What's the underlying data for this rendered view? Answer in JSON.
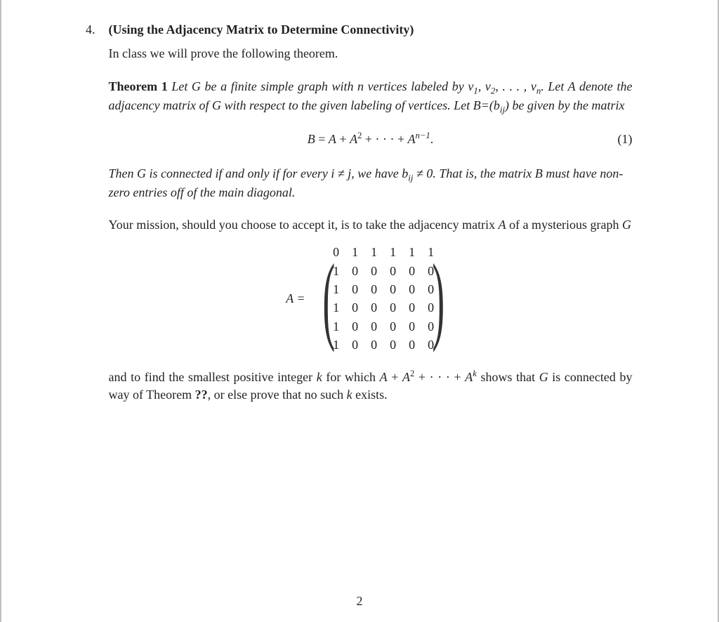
{
  "problem": {
    "number": "4.",
    "title_prefix": "(",
    "title_text": "Using the Adjacency Matrix to Determine Connectivity",
    "title_suffix": ")",
    "intro": "In class we will prove the following theorem."
  },
  "theorem": {
    "label": "Theorem 1",
    "body1_a": "Let G be a finite simple graph with n vertices labeled by v",
    "body1_b": ", v",
    "body1_c": ", . . . , v",
    "body1_d": ". Let A denote the adjacency matrix of G with respect to the given labeling of vertices. Let B=(b",
    "body1_e": ") be given by the matrix",
    "sub1": "1",
    "sub2": "2",
    "subn": "n",
    "subij": "ij"
  },
  "equation": {
    "lhs": "B",
    "eq": " = ",
    "t1": "A",
    "plus1": " + ",
    "t2": "A",
    "exp2": "2",
    "plus2": " + · · · + ",
    "t3": "A",
    "exp3": "n−1",
    "dot": ".",
    "number": "(1)"
  },
  "theorem_tail": {
    "a": "Then G is connected if and only if for every i ≠ j, we have b",
    "sub": "ij",
    "b": " ≠ 0. That is, the matrix B must have non-zero entries off of the main diagonal."
  },
  "mission": {
    "a": "Your mission, should you choose to accept it, is to take the adjacency matrix ",
    "A": "A",
    "b": " of a mysterious graph ",
    "G": "G"
  },
  "matrix": {
    "label": "A =",
    "rows": [
      [
        "0",
        "1",
        "1",
        "1",
        "1",
        "1"
      ],
      [
        "1",
        "0",
        "0",
        "0",
        "0",
        "0"
      ],
      [
        "1",
        "0",
        "0",
        "0",
        "0",
        "0"
      ],
      [
        "1",
        "0",
        "0",
        "0",
        "0",
        "0"
      ],
      [
        "1",
        "0",
        "0",
        "0",
        "0",
        "0"
      ],
      [
        "1",
        "0",
        "0",
        "0",
        "0",
        "0"
      ]
    ]
  },
  "conclusion": {
    "a": "and  to find the smallest positive integer ",
    "k1": "k",
    "b": " for which ",
    "expr_A1": "A",
    "plus1": " + ",
    "expr_A2": "A",
    "exp2": "2",
    "plus2": " + · · · + ",
    "expr_A3": "A",
    "exp3": "k",
    "c": " shows that ",
    "G": "G",
    "d": " is connected by way of Theorem ",
    "ref": "??",
    "e": ", or else prove that no such ",
    "k2": "k",
    "f": " exists."
  },
  "page_number": "2",
  "style": {
    "body_font": "Times New Roman, serif",
    "body_fontsize": 18,
    "text_color": "#222222",
    "background": "#ffffff",
    "border_color": "#c0c0c0",
    "matrix_cell_padding": "1px 9px"
  }
}
